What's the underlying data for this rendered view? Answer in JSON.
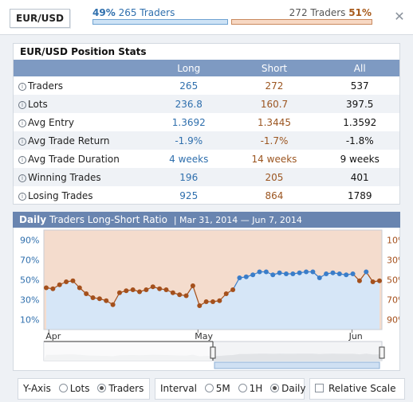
{
  "header": {
    "pair": "EUR/USD",
    "long_pct": "49%",
    "long_traders": "265 Traders",
    "short_traders": "272 Traders",
    "short_pct": "51%",
    "close_icon": "close-icon"
  },
  "stats": {
    "title": "EUR/USD Position Stats",
    "columns": [
      "Long",
      "Short",
      "All"
    ],
    "rows": [
      {
        "label": "Traders",
        "long": "265",
        "short": "272",
        "all": "537"
      },
      {
        "label": "Lots",
        "long": "236.8",
        "short": "160.7",
        "all": "397.5"
      },
      {
        "label": "Avg Entry",
        "long": "1.3692",
        "short": "1.3445",
        "all": "1.3592"
      },
      {
        "label": "Avg Trade Return",
        "long": "-1.9%",
        "short": "-1.7%",
        "all": "-1.8%"
      },
      {
        "label": "Avg Trade Duration",
        "long": "4 weeks",
        "short": "14 weeks",
        "all": "9 weeks"
      },
      {
        "label": "Winning Trades",
        "long": "196",
        "short": "205",
        "all": "401"
      },
      {
        "label": "Losing Trades",
        "long": "925",
        "short": "864",
        "all": "1789"
      }
    ]
  },
  "chart_header": {
    "period": "Daily",
    "title": "Traders Long-Short Ratio",
    "range": "Mar 31, 2014 — Jun 7, 2014"
  },
  "chart_data": {
    "type": "line",
    "left_ticks": [
      "90%",
      "70%",
      "50%",
      "30%",
      "10%"
    ],
    "right_ticks": [
      "10%",
      "30%",
      "50%",
      "70%",
      "90%"
    ],
    "x_labels": [
      "Apr",
      "May",
      "Jun"
    ],
    "ylim": [
      0,
      100
    ],
    "series": [
      {
        "values": [
          42,
          41,
          45,
          48,
          49,
          42,
          36,
          32,
          31,
          29,
          25,
          37,
          39,
          40,
          38,
          40,
          43,
          41,
          40,
          37,
          35,
          34,
          44,
          24,
          28,
          28,
          29,
          36,
          40,
          52,
          53,
          55,
          58,
          58,
          55,
          57,
          56,
          56,
          57,
          58,
          58,
          52,
          56,
          57,
          56,
          55,
          56,
          49,
          58,
          48,
          49
        ]
      }
    ],
    "colors": {
      "long": "#3a7dc9",
      "short": "#a4501c",
      "long_fill": "#d6e6f7",
      "short_fill": "#f4dccd"
    }
  },
  "controls": {
    "yaxis_label": "Y-Axis",
    "yaxis_options": [
      "Lots",
      "Traders"
    ],
    "yaxis_selected": "Traders",
    "interval_label": "Interval",
    "interval_options": [
      "5M",
      "1H",
      "Daily"
    ],
    "interval_selected": "Daily",
    "relative_scale": "Relative Scale"
  }
}
